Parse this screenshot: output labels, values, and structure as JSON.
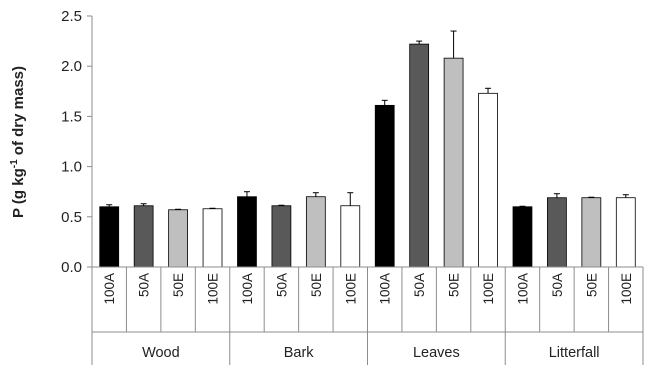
{
  "chart_data": {
    "type": "bar",
    "ylabel_prefix": "P (g kg",
    "ylabel_sup": "-1",
    "ylabel_suffix": " of dry mass)",
    "ylim": [
      0,
      2.5
    ],
    "yticks": [
      "0.0",
      "0.5",
      "1.0",
      "1.5",
      "2.0",
      "2.5"
    ],
    "grid": false,
    "legend": "none",
    "groups": [
      {
        "name": "Wood",
        "bars": [
          {
            "label": "100A",
            "value": 0.6,
            "error": 0.02
          },
          {
            "label": "50A",
            "value": 0.61,
            "error": 0.02
          },
          {
            "label": "50E",
            "value": 0.57,
            "error": 0.005
          },
          {
            "label": "100E",
            "value": 0.58,
            "error": 0.005
          }
        ]
      },
      {
        "name": "Bark",
        "bars": [
          {
            "label": "100A",
            "value": 0.7,
            "error": 0.05
          },
          {
            "label": "50A",
            "value": 0.61,
            "error": 0.005
          },
          {
            "label": "50E",
            "value": 0.7,
            "error": 0.04
          },
          {
            "label": "100E",
            "value": 0.61,
            "error": 0.13
          }
        ]
      },
      {
        "name": "Leaves",
        "bars": [
          {
            "label": "100A",
            "value": 1.61,
            "error": 0.05
          },
          {
            "label": "50A",
            "value": 2.22,
            "error": 0.03
          },
          {
            "label": "50E",
            "value": 2.08,
            "error": 0.27
          },
          {
            "label": "100E",
            "value": 1.73,
            "error": 0.05
          }
        ]
      },
      {
        "name": "Litterfall",
        "bars": [
          {
            "label": "100A",
            "value": 0.6,
            "error": 0.005
          },
          {
            "label": "50A",
            "value": 0.69,
            "error": 0.04
          },
          {
            "label": "50E",
            "value": 0.69,
            "error": 0.005
          },
          {
            "label": "100E",
            "value": 0.69,
            "error": 0.03
          }
        ]
      }
    ],
    "series_colors": {
      "100A": "#000000",
      "50A": "#595959",
      "50E": "#bfbfbf",
      "100E": "#ffffff"
    }
  }
}
